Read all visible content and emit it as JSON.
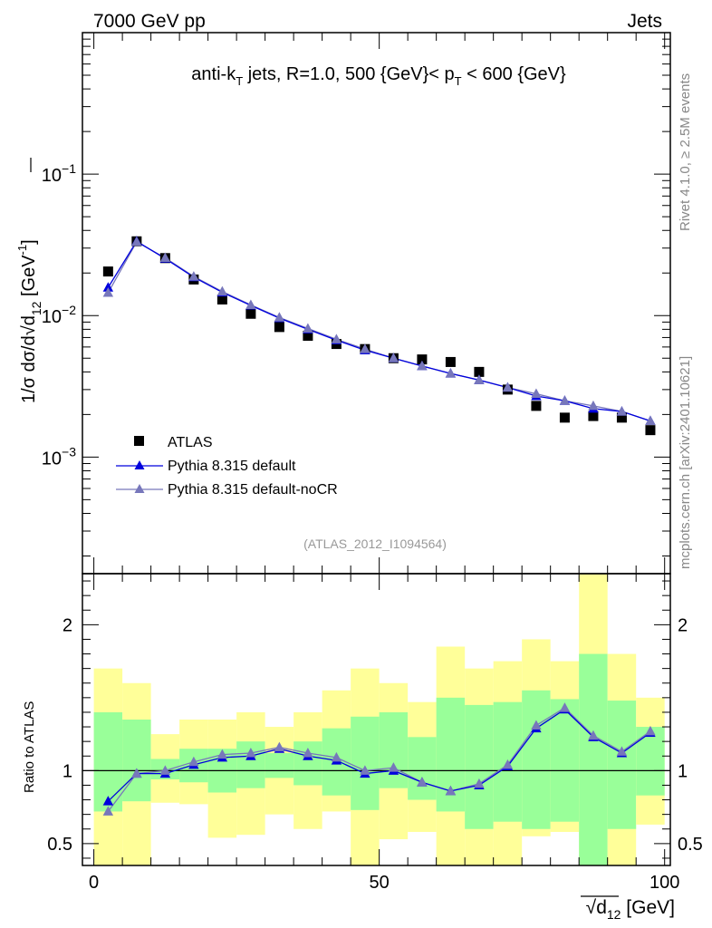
{
  "header": {
    "left": "7000 GeV pp",
    "right": "Jets"
  },
  "side_labels": {
    "rivet": "Rivet 4.1.0, ≥ 2.5M events",
    "mcplots": "mcplots.cern.ch [arXiv:2401.10621]"
  },
  "plot_title": {
    "a": "anti-k",
    "a_sub": "T",
    "b": " jets, R=1.0, 500 {GeV}< p",
    "b_sub": "T",
    "c": " < 600 {GeV}"
  },
  "analysis_id": "(ATLAS_2012_I1094564)",
  "legend": {
    "atlas": "ATLAS",
    "default": "Pythia 8.315 default",
    "nocr": "Pythia 8.315 default-noCR"
  },
  "colors": {
    "atlas": "#000000",
    "default": "#0000dd",
    "nocr": "#7777bb",
    "band_outer": "#ffff99",
    "band_inner": "#99ff99"
  },
  "chart_data": [
    {
      "type": "scatter",
      "title": "anti-kT jets, R=1.0, 500 {GeV}< pT < 600 {GeV}",
      "ylabel": {
        "main": "1/σ dσ/d√d",
        "sub": "12",
        "unit": " [GeV",
        "unit_sup": "-1",
        "close": "]"
      },
      "yscale": "log",
      "ylim": [
        0.00015,
        1.0
      ],
      "xlim": [
        -2,
        101
      ],
      "y_ticks": [
        {
          "value": 0.001,
          "base": "10",
          "exp": "−3"
        },
        {
          "value": 0.01,
          "base": "10",
          "exp": "−2"
        },
        {
          "value": 0.1,
          "base": "10",
          "exp": "−1"
        }
      ],
      "x": [
        2.5,
        7.5,
        12.5,
        17.5,
        22.5,
        27.5,
        32.5,
        37.5,
        42.5,
        47.5,
        52.5,
        57.5,
        62.5,
        67.5,
        72.5,
        77.5,
        82.5,
        87.5,
        92.5,
        97.5
      ],
      "series": [
        {
          "name": "ATLAS",
          "values": [
            0.0205,
            0.0335,
            0.0255,
            0.018,
            0.013,
            0.0103,
            0.0083,
            0.0072,
            0.0063,
            0.0058,
            0.005,
            0.0049,
            0.0047,
            0.004,
            0.003,
            0.0023,
            0.0019,
            0.00195,
            0.0019,
            0.00155
          ]
        },
        {
          "name": "Pythia 8.315 default",
          "values": [
            0.0158,
            0.0335,
            0.0253,
            0.0187,
            0.0146,
            0.0118,
            0.0096,
            0.008,
            0.0067,
            0.0057,
            0.005,
            0.0044,
            0.0039,
            0.0035,
            0.0031,
            0.0027,
            0.0025,
            0.0022,
            0.0021,
            0.0018
          ]
        },
        {
          "name": "Pythia 8.315 default-noCR",
          "values": [
            0.0145,
            0.0332,
            0.0256,
            0.0189,
            0.0148,
            0.0119,
            0.0097,
            0.0081,
            0.0068,
            0.0058,
            0.005,
            0.0044,
            0.0039,
            0.0035,
            0.0031,
            0.0028,
            0.0025,
            0.0023,
            0.0021,
            0.0018
          ]
        }
      ]
    },
    {
      "type": "line",
      "ylabel": "Ratio to ATLAS",
      "xlabel": {
        "main": "d",
        "sub": "12",
        "unit": " [GeV]"
      },
      "ylim": [
        0.35,
        2.35
      ],
      "xlim": [
        -2,
        101
      ],
      "y_ticks": [
        {
          "value": 0.5,
          "label": "0.5"
        },
        {
          "value": 1,
          "label": "1"
        },
        {
          "value": 2,
          "label": "2"
        }
      ],
      "x_ticks": [
        {
          "value": 0,
          "label": "0"
        },
        {
          "value": 50,
          "label": "50"
        },
        {
          "value": 100,
          "label": "100"
        }
      ],
      "bin_edges": [
        0,
        5,
        10,
        15,
        20,
        25,
        30,
        35,
        40,
        45,
        50,
        55,
        60,
        65,
        70,
        75,
        80,
        85,
        90,
        95,
        100
      ],
      "band_outer": {
        "low": [
          0.3,
          0.3,
          0.78,
          0.77,
          0.54,
          0.56,
          0.7,
          0.6,
          0.72,
          0.3,
          0.53,
          0.58,
          0.3,
          0.3,
          0.3,
          0.55,
          0.58,
          0.3,
          0.3,
          0.63
        ],
        "high": [
          1.7,
          1.6,
          1.25,
          1.35,
          1.35,
          1.4,
          1.3,
          1.4,
          1.55,
          1.7,
          1.6,
          1.47,
          1.85,
          1.7,
          1.75,
          1.9,
          1.75,
          2.35,
          1.8,
          1.5
        ]
      },
      "band_inner": {
        "low": [
          0.72,
          0.79,
          0.94,
          0.92,
          0.85,
          0.88,
          0.95,
          0.9,
          0.83,
          0.73,
          0.88,
          0.8,
          0.72,
          0.6,
          0.65,
          0.6,
          0.65,
          0.3,
          0.6,
          0.83
        ],
        "high": [
          1.4,
          1.35,
          1.08,
          1.15,
          1.15,
          1.2,
          1.12,
          1.2,
          1.29,
          1.37,
          1.4,
          1.23,
          1.5,
          1.45,
          1.47,
          1.55,
          1.49,
          1.8,
          1.48,
          1.3
        ]
      },
      "reference": 1,
      "x": [
        2.5,
        7.5,
        12.5,
        17.5,
        22.5,
        27.5,
        32.5,
        37.5,
        42.5,
        47.5,
        52.5,
        57.5,
        62.5,
        67.5,
        72.5,
        77.5,
        82.5,
        87.5,
        92.5,
        97.5
      ],
      "series": [
        {
          "name": "Pythia 8.315 default",
          "values": [
            0.79,
            0.98,
            0.98,
            1.04,
            1.09,
            1.1,
            1.15,
            1.1,
            1.07,
            0.98,
            1.0,
            0.92,
            0.86,
            0.9,
            1.03,
            1.29,
            1.42,
            1.23,
            1.12,
            1.26
          ]
        },
        {
          "name": "Pythia 8.315 default-noCR",
          "values": [
            0.72,
            0.98,
            1.0,
            1.06,
            1.11,
            1.12,
            1.16,
            1.12,
            1.09,
            1.0,
            1.02,
            0.92,
            0.86,
            0.91,
            1.04,
            1.31,
            1.43,
            1.24,
            1.13,
            1.27
          ]
        }
      ]
    }
  ]
}
